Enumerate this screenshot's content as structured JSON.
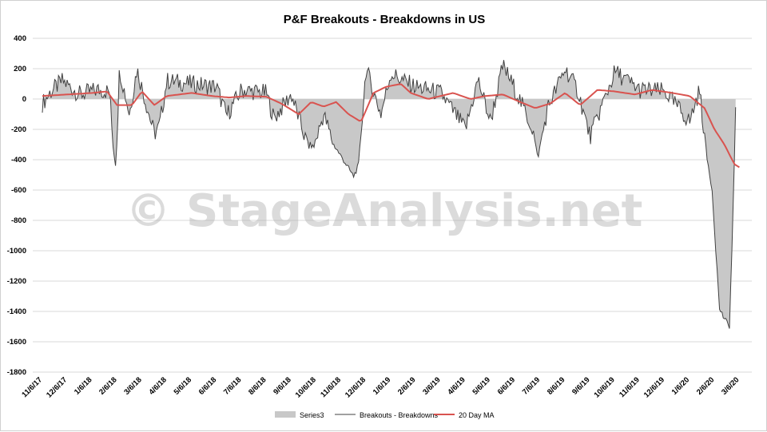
{
  "chart_data": {
    "type": "line",
    "title": "P&F Breakouts - Breakdowns in US",
    "xlabel": "",
    "ylabel": "",
    "ylim": [
      -1800,
      400
    ],
    "yticks": [
      400,
      200,
      0,
      -200,
      -400,
      -600,
      -800,
      -1000,
      -1200,
      -1400,
      -1600,
      -1800
    ],
    "x_tick_labels": [
      "11/6/17",
      "12/6/17",
      "1/6/18",
      "2/6/18",
      "3/6/18",
      "4/6/18",
      "5/6/18",
      "6/6/18",
      "7/6/18",
      "8/6/18",
      "9/6/18",
      "10/6/18",
      "11/6/18",
      "12/6/18",
      "1/6/19",
      "2/6/19",
      "3/6/19",
      "4/6/19",
      "5/6/19",
      "6/6/19",
      "7/6/19",
      "8/6/19",
      "9/6/19",
      "10/6/19",
      "11/6/19",
      "12/6/19",
      "1/6/20",
      "2/6/20",
      "3/6/20"
    ],
    "grid": true,
    "legend_position": "bottom",
    "watermark": "© StageAnalysis.net",
    "series_anchors_note": "key points, month index from 11/6/17 = 0",
    "series": [
      {
        "name": "Series3",
        "style": "area",
        "color": "#c8c8c8",
        "same_as": "Breakouts - Breakdowns"
      },
      {
        "name": "Breakouts - Breakdowns",
        "style": "line",
        "color": "#404040",
        "key_points": [
          [
            0,
            -30
          ],
          [
            0.3,
            40
          ],
          [
            0.8,
            120
          ],
          [
            1.5,
            30
          ],
          [
            2.2,
            60
          ],
          [
            2.7,
            50
          ],
          [
            2.85,
            -330
          ],
          [
            2.95,
            -440
          ],
          [
            3.1,
            200
          ],
          [
            3.5,
            -100
          ],
          [
            3.8,
            200
          ],
          [
            4.2,
            -50
          ],
          [
            4.5,
            -230
          ],
          [
            4.7,
            -180
          ],
          [
            5.0,
            120
          ],
          [
            6.0,
            100
          ],
          [
            7.0,
            80
          ],
          [
            7.4,
            -110
          ],
          [
            8.0,
            60
          ],
          [
            9.0,
            40
          ],
          [
            9.3,
            -130
          ],
          [
            10.0,
            30
          ],
          [
            10.6,
            -280
          ],
          [
            10.9,
            -320
          ],
          [
            11.3,
            -100
          ],
          [
            11.7,
            -300
          ],
          [
            12.2,
            -430
          ],
          [
            12.5,
            -510
          ],
          [
            12.7,
            -440
          ],
          [
            13.0,
            200
          ],
          [
            13.6,
            -100
          ],
          [
            14.0,
            170
          ],
          [
            14.5,
            120
          ],
          [
            15.0,
            80
          ],
          [
            16.0,
            40
          ],
          [
            17.0,
            -200
          ],
          [
            17.5,
            130
          ],
          [
            18.0,
            -150
          ],
          [
            18.5,
            220
          ],
          [
            19.0,
            60
          ],
          [
            19.7,
            -200
          ],
          [
            19.9,
            -390
          ],
          [
            20.3,
            -60
          ],
          [
            21.0,
            200
          ],
          [
            21.5,
            60
          ],
          [
            22.0,
            -250
          ],
          [
            23.0,
            180
          ],
          [
            24.0,
            60
          ],
          [
            25.0,
            50
          ],
          [
            26.0,
            -150
          ],
          [
            26.4,
            60
          ],
          [
            26.7,
            -390
          ],
          [
            26.9,
            -590
          ],
          [
            27.2,
            -1380
          ],
          [
            27.4,
            -1450
          ],
          [
            27.6,
            -1500
          ],
          [
            27.7,
            -1000
          ],
          [
            27.85,
            -100
          ]
        ]
      },
      {
        "name": "20 Day MA",
        "style": "line",
        "color": "#d9534f",
        "key_points": [
          [
            0,
            20
          ],
          [
            1,
            30
          ],
          [
            2,
            40
          ],
          [
            2.6,
            50
          ],
          [
            3.0,
            -40
          ],
          [
            3.6,
            -40
          ],
          [
            4.0,
            50
          ],
          [
            4.5,
            -40
          ],
          [
            5.0,
            20
          ],
          [
            6.0,
            40
          ],
          [
            6.8,
            20
          ],
          [
            7.5,
            10
          ],
          [
            8.2,
            20
          ],
          [
            9.0,
            15
          ],
          [
            9.6,
            -30
          ],
          [
            10.3,
            -100
          ],
          [
            10.8,
            -20
          ],
          [
            11.3,
            -50
          ],
          [
            11.8,
            -20
          ],
          [
            12.3,
            -100
          ],
          [
            12.8,
            -150
          ],
          [
            13.3,
            40
          ],
          [
            13.8,
            80
          ],
          [
            14.4,
            100
          ],
          [
            14.8,
            40
          ],
          [
            15.5,
            0
          ],
          [
            16.5,
            40
          ],
          [
            17.2,
            0
          ],
          [
            17.8,
            20
          ],
          [
            18.5,
            30
          ],
          [
            19.2,
            -20
          ],
          [
            19.8,
            -60
          ],
          [
            20.4,
            -30
          ],
          [
            21.0,
            40
          ],
          [
            21.6,
            -40
          ],
          [
            22.3,
            60
          ],
          [
            23.0,
            50
          ],
          [
            23.8,
            30
          ],
          [
            24.5,
            60
          ],
          [
            25.3,
            40
          ],
          [
            26.0,
            20
          ],
          [
            26.6,
            -60
          ],
          [
            27.0,
            -200
          ],
          [
            27.4,
            -300
          ],
          [
            27.8,
            -430
          ],
          [
            28.0,
            -450
          ]
        ]
      }
    ]
  }
}
